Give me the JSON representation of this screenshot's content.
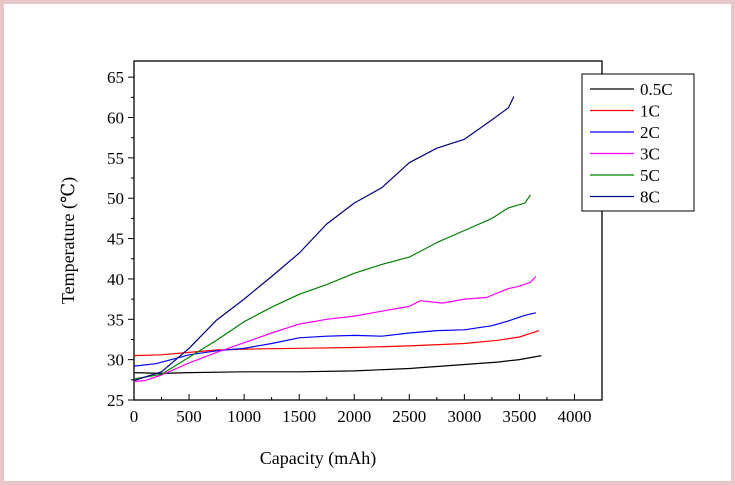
{
  "chart_data": {
    "type": "line",
    "xlabel": "Capacity (mAh)",
    "ylabel": "Temperature (℃)",
    "xlim": [
      0,
      4250
    ],
    "ylim": [
      25,
      67
    ],
    "x_ticks": [
      0,
      500,
      1000,
      1500,
      2000,
      2500,
      3000,
      3500,
      4000
    ],
    "y_ticks": [
      25,
      30,
      35,
      40,
      45,
      50,
      55,
      60,
      65
    ],
    "grid": false,
    "legend_position": "top-right",
    "series": [
      {
        "name": "0.5C",
        "color": "#000000",
        "points": [
          [
            0,
            28.4
          ],
          [
            250,
            28.3
          ],
          [
            500,
            28.4
          ],
          [
            1000,
            28.5
          ],
          [
            1500,
            28.5
          ],
          [
            2000,
            28.6
          ],
          [
            2500,
            28.9
          ],
          [
            3000,
            29.4
          ],
          [
            3300,
            29.7
          ],
          [
            3500,
            30.0
          ],
          [
            3700,
            30.5
          ]
        ]
      },
      {
        "name": "1C",
        "color": "#ff0000",
        "points": [
          [
            0,
            30.5
          ],
          [
            250,
            30.6
          ],
          [
            500,
            30.9
          ],
          [
            750,
            31.2
          ],
          [
            1000,
            31.3
          ],
          [
            1500,
            31.4
          ],
          [
            2000,
            31.5
          ],
          [
            2500,
            31.7
          ],
          [
            3000,
            32.0
          ],
          [
            3300,
            32.4
          ],
          [
            3500,
            32.8
          ],
          [
            3680,
            33.6
          ]
        ]
      },
      {
        "name": "2C",
        "color": "#0000ff",
        "points": [
          [
            0,
            29.2
          ],
          [
            200,
            29.5
          ],
          [
            500,
            30.6
          ],
          [
            750,
            31.1
          ],
          [
            1000,
            31.4
          ],
          [
            1250,
            32.0
          ],
          [
            1500,
            32.7
          ],
          [
            1750,
            32.9
          ],
          [
            2000,
            33.0
          ],
          [
            2250,
            32.9
          ],
          [
            2500,
            33.3
          ],
          [
            2750,
            33.6
          ],
          [
            3000,
            33.7
          ],
          [
            3250,
            34.2
          ],
          [
            3400,
            34.8
          ],
          [
            3550,
            35.5
          ],
          [
            3650,
            35.8
          ]
        ]
      },
      {
        "name": "3C",
        "color": "#ff00ff",
        "points": [
          [
            0,
            27.3
          ],
          [
            100,
            27.4
          ],
          [
            250,
            28.1
          ],
          [
            500,
            29.6
          ],
          [
            750,
            30.9
          ],
          [
            1000,
            32.1
          ],
          [
            1250,
            33.3
          ],
          [
            1500,
            34.4
          ],
          [
            1750,
            35.0
          ],
          [
            2000,
            35.4
          ],
          [
            2250,
            36.0
          ],
          [
            2500,
            36.6
          ],
          [
            2600,
            37.3
          ],
          [
            2800,
            37.0
          ],
          [
            3000,
            37.5
          ],
          [
            3200,
            37.7
          ],
          [
            3400,
            38.8
          ],
          [
            3500,
            39.1
          ],
          [
            3600,
            39.6
          ],
          [
            3650,
            40.3
          ]
        ]
      },
      {
        "name": "5C",
        "color": "#008000",
        "points": [
          [
            0,
            27.6
          ],
          [
            250,
            28.2
          ],
          [
            500,
            30.3
          ],
          [
            750,
            32.4
          ],
          [
            1000,
            34.7
          ],
          [
            1250,
            36.5
          ],
          [
            1500,
            38.1
          ],
          [
            1750,
            39.3
          ],
          [
            2000,
            40.7
          ],
          [
            2250,
            41.8
          ],
          [
            2500,
            42.7
          ],
          [
            2750,
            44.5
          ],
          [
            3000,
            46.0
          ],
          [
            3250,
            47.5
          ],
          [
            3400,
            48.8
          ],
          [
            3550,
            49.4
          ],
          [
            3600,
            50.4
          ]
        ]
      },
      {
        "name": "8C",
        "color": "#000080",
        "points": [
          [
            0,
            27.4
          ],
          [
            250,
            28.5
          ],
          [
            500,
            31.4
          ],
          [
            750,
            34.9
          ],
          [
            1000,
            37.5
          ],
          [
            1250,
            40.3
          ],
          [
            1500,
            43.2
          ],
          [
            1750,
            46.8
          ],
          [
            2000,
            49.4
          ],
          [
            2250,
            51.3
          ],
          [
            2500,
            54.4
          ],
          [
            2750,
            56.2
          ],
          [
            3000,
            57.3
          ],
          [
            3250,
            59.7
          ],
          [
            3400,
            61.2
          ],
          [
            3450,
            62.6
          ]
        ]
      }
    ]
  }
}
